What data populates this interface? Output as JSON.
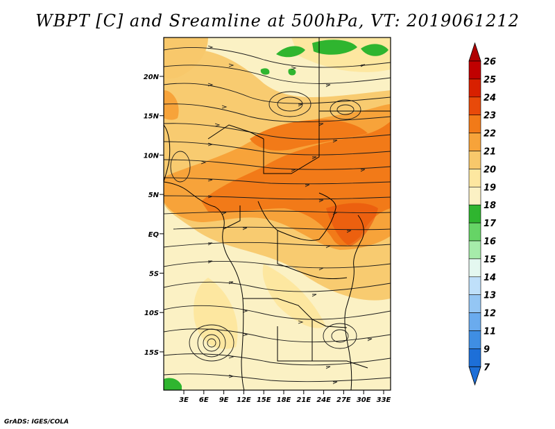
{
  "title": "WBPT [C] and Sreamline at 500hPa, VT: 2019061212",
  "footer": "GrADS: IGES/COLA",
  "map": {
    "lat_labels": [
      "20N",
      "15N",
      "10N",
      "5N",
      "EQ",
      "5S",
      "10S",
      "15S"
    ],
    "lon_labels": [
      "3E",
      "6E",
      "9E",
      "12E",
      "15E",
      "18E",
      "21E",
      "24E",
      "27E",
      "30E",
      "33E"
    ],
    "field": "Wet-bulb potential temperature",
    "level": "500hPa"
  },
  "colorbar": {
    "labels": [
      "26",
      "25",
      "24",
      "23",
      "22",
      "21",
      "20",
      "19",
      "18",
      "17",
      "16",
      "15",
      "14",
      "13",
      "12",
      "11",
      "9",
      "7"
    ],
    "colors": [
      "#c00000",
      "#d82000",
      "#e84a0a",
      "#f27a18",
      "#f7a33a",
      "#f8c86b",
      "#fde7a0",
      "#fbf1c4",
      "#2fb52f",
      "#66d466",
      "#a6ecaa",
      "#e4f8f0",
      "#bfe0fa",
      "#94c6f4",
      "#6aabee",
      "#3f8ee3",
      "#1d6fd8"
    ],
    "top_arrow_color": "#b00000",
    "bottom_arrow_color": "#1d6fd8"
  }
}
